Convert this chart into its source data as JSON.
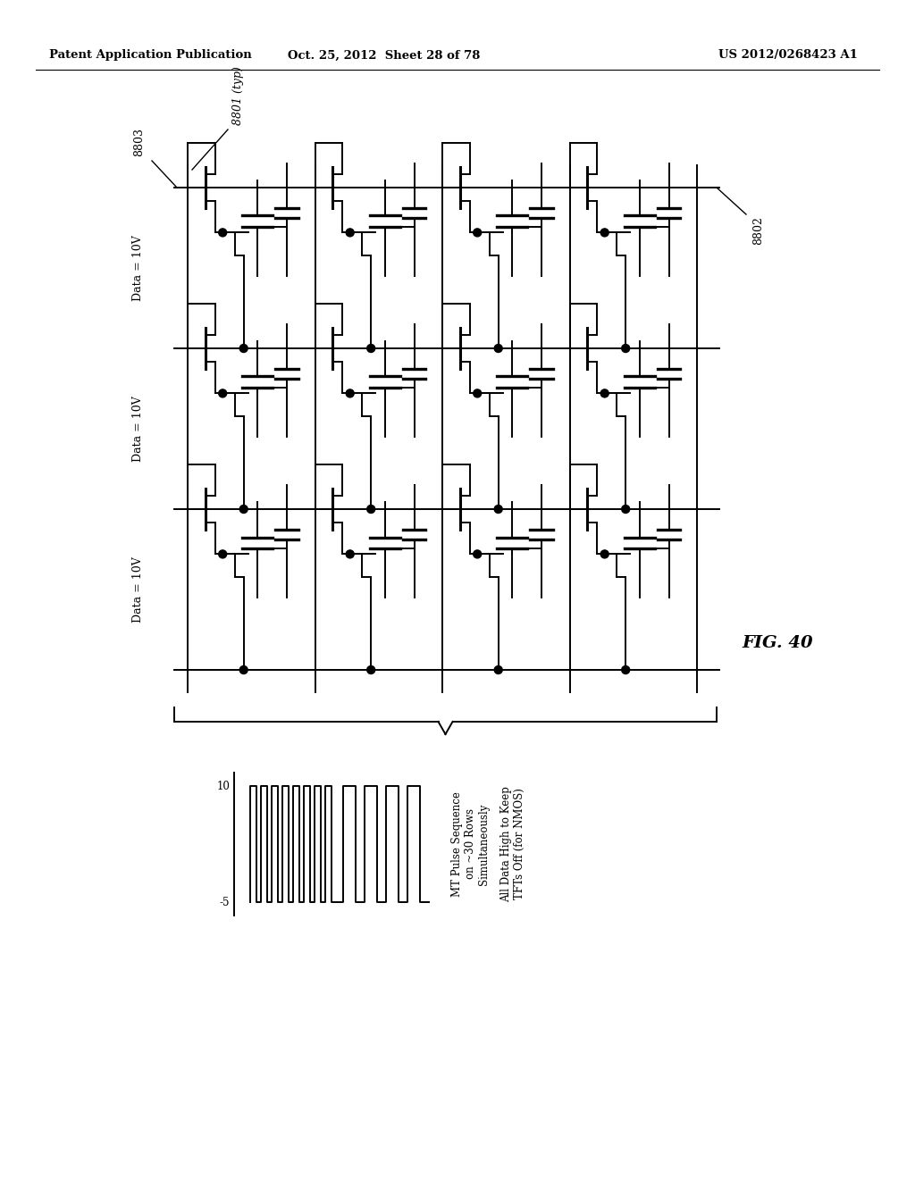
{
  "header_left": "Patent Application Publication",
  "header_mid": "Oct. 25, 2012  Sheet 28 of 78",
  "header_right": "US 2012/0268423 A1",
  "fig_label": "FIG. 40",
  "label_8801": "8801 (typ)",
  "label_8802": "8802",
  "label_8803": "8803",
  "data_labels": [
    "Data = 10V",
    "Data = 10V",
    "Data = 10V"
  ],
  "pulse_label_10": "10",
  "pulse_label_n5": "-5",
  "pulse_text1": "MT Pulse Sequence\non ~30 Rows\nSimultaneously",
  "pulse_text2": "All Data High to Keep\nTFTs Off (for NMOS)",
  "bg_color": "#ffffff",
  "line_color": "#000000"
}
